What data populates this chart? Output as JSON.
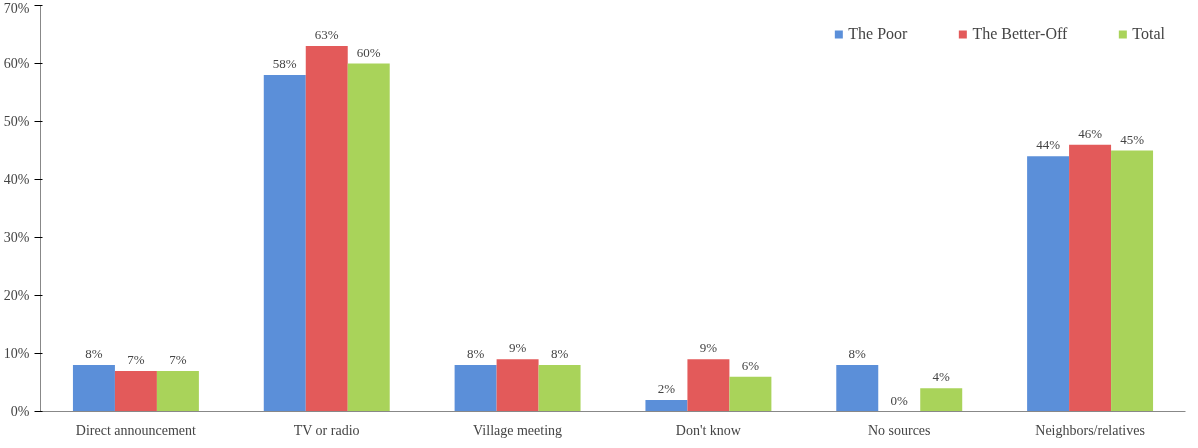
{
  "chart_data": {
    "type": "bar",
    "categories": [
      "Direct announcement",
      "TV or radio",
      "Village meeting",
      "Don't know",
      "No sources",
      "Neighbors/relatives"
    ],
    "series": [
      {
        "name": "The Poor",
        "color": "#5b8fd9",
        "values": [
          8,
          58,
          8,
          2,
          8,
          44
        ],
        "value_labels": [
          "8%",
          "58%",
          "8%",
          "2%",
          "8%",
          "44%"
        ]
      },
      {
        "name": "The Better-Off",
        "color": "#e35a5a",
        "values": [
          7,
          63,
          9,
          9,
          0,
          46
        ],
        "value_labels": [
          "7%",
          "63%",
          "9%",
          "9%",
          "0%",
          "46%"
        ]
      },
      {
        "name": "Total",
        "color": "#a9d35a",
        "values": [
          7,
          60,
          8,
          6,
          4,
          45
        ],
        "value_labels": [
          "7%",
          "60%",
          "8%",
          "6%",
          "4%",
          "45%"
        ]
      }
    ],
    "ylim": [
      0,
      70
    ],
    "yticks": [
      {
        "value": 0,
        "label": "0%"
      },
      {
        "value": 10,
        "label": "10%"
      },
      {
        "value": 20,
        "label": "20%"
      },
      {
        "value": 30,
        "label": "30%"
      },
      {
        "value": 40,
        "label": "40%"
      },
      {
        "value": 50,
        "label": "50%"
      },
      {
        "value": 60,
        "label": "60%"
      },
      {
        "value": 70,
        "label": "70%"
      }
    ],
    "legend": "top right"
  }
}
